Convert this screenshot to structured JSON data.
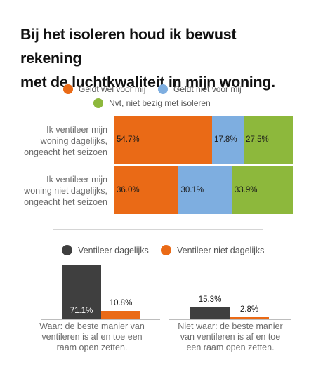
{
  "title_line1": "Bij het isoleren houd ik bewust rekening",
  "title_line2": "met de luchtkwaliteit in mijn woning.",
  "colors": {
    "orange": "#ea6a16",
    "blue": "#7eaee0",
    "green": "#8db83c",
    "dark": "#3f3f3f"
  },
  "chart_data": [
    {
      "type": "bar",
      "orientation": "horizontal",
      "stacked": true,
      "legend": [
        "Geldt wel voor mij",
        "Geldt niet voor mij",
        "Nvt, niet bezig met isoleren"
      ],
      "categories": [
        "Ik ventileer mijn woning dagelijks, ongeacht het seizoen",
        "Ik ventileer mijn woning niet dagelijks, ongeacht het seizoen"
      ],
      "category_lines": [
        [
          "Ik ventileer mijn",
          "woning dagelijks,",
          "ongeacht het seizoen"
        ],
        [
          "Ik ventileer mijn",
          "woning niet dagelijks,",
          "ongeacht het seizoen"
        ]
      ],
      "series": [
        {
          "name": "Geldt wel voor mij",
          "values": [
            54.7,
            36.0
          ],
          "labels": [
            "54.7%",
            "36.0%"
          ]
        },
        {
          "name": "Geldt niet voor mij",
          "values": [
            17.8,
            30.1
          ],
          "labels": [
            "17.8%",
            "30.1%"
          ]
        },
        {
          "name": "Nvt, niet bezig met isoleren",
          "values": [
            27.5,
            33.9
          ],
          "labels": [
            "27.5%",
            "33.9%"
          ]
        }
      ]
    },
    {
      "type": "bar",
      "orientation": "vertical",
      "legend": [
        "Ventileer dagelijks",
        "Ventileer niet dagelijks"
      ],
      "categories": [
        "Waar: de beste manier van ventileren is af en toe een raam open zetten.",
        "Niet waar: de beste manier van ventileren is af en toe een raam open zetten."
      ],
      "category_lines": [
        [
          "Waar: de beste manier van",
          "ventileren is af en toe een",
          "raam open zetten."
        ],
        [
          "Niet waar: de beste manier",
          "van ventileren is af en toe",
          "een raam open zetten."
        ]
      ],
      "series": [
        {
          "name": "Ventileer dagelijks",
          "values": [
            71.1,
            15.3
          ],
          "labels": [
            "71.1%",
            "15.3%"
          ]
        },
        {
          "name": "Ventileer niet dagelijks",
          "values": [
            10.8,
            2.8
          ],
          "labels": [
            "10.8%",
            "2.8%"
          ]
        }
      ]
    }
  ]
}
